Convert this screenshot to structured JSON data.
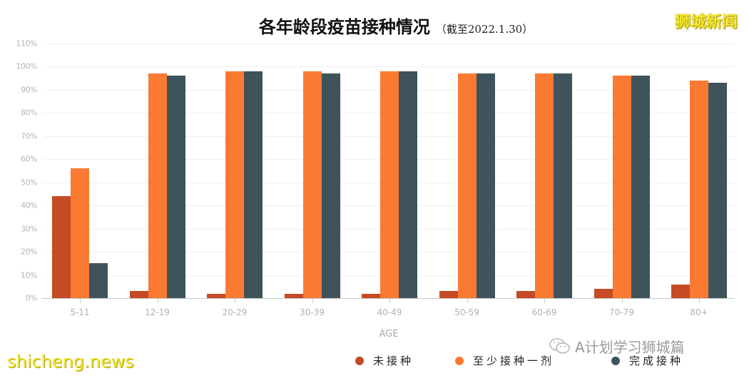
{
  "header": {
    "title": "各年龄段疫苗接种情况",
    "subtitle": "（截至2022.1.30）",
    "brand": "狮城新闻"
  },
  "watermarks": {
    "site": "shicheng.news",
    "wechat_account": "A计划学习狮城篇",
    "wechat_icon": "wechat-icon"
  },
  "colors": {
    "unvaccinated": "#c64a26",
    "at_least_one_dose": "#fb7a31",
    "fully_vaccinated": "#3e535c",
    "gridline": "#f0f0f0",
    "axis_text": "#b5b5b5"
  },
  "chart_data": {
    "type": "bar",
    "title": "各年龄段疫苗接种情况",
    "subtitle": "（截至2022.1.30）",
    "xlabel": "AGE",
    "ylabel": "",
    "ylim": [
      0,
      110
    ],
    "yticks": [
      "0%",
      "10%",
      "20%",
      "30%",
      "40%",
      "50%",
      "60%",
      "70%",
      "80%",
      "90%",
      "100%",
      "110%"
    ],
    "grid": true,
    "legend_position": "bottom",
    "categories": [
      "5-11",
      "12-19",
      "20-29",
      "30-39",
      "40-49",
      "50-59",
      "60-69",
      "70-79",
      "80+"
    ],
    "series": [
      {
        "name": "未接种",
        "color": "#c64a26",
        "values": [
          44,
          3,
          2,
          2,
          2,
          3,
          3,
          4,
          6
        ]
      },
      {
        "name": "至少接种一剂",
        "color": "#fb7a31",
        "values": [
          56,
          97,
          98,
          98,
          98,
          97,
          97,
          96,
          94
        ]
      },
      {
        "name": "完成接种",
        "color": "#3e535c",
        "values": [
          15,
          96,
          98,
          97,
          98,
          97,
          97,
          96,
          93
        ]
      }
    ]
  }
}
